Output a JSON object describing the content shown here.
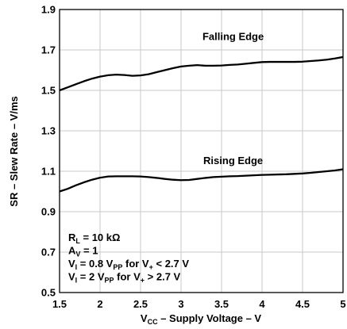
{
  "chart_data": {
    "type": "line",
    "xlabel": "V<sub>CC</sub> – Supply Voltage – V",
    "xlabel_parts": {
      "pre": "V",
      "sub": "CC",
      "post": " – Supply Voltage – V"
    },
    "ylabel": "SR – Slew Rate – V/ms",
    "xlim": [
      1.5,
      5
    ],
    "ylim": [
      0.5,
      1.9
    ],
    "xticks": [
      "1.5",
      "2",
      "2.5",
      "3",
      "3.5",
      "4",
      "4.5",
      "5"
    ],
    "yticks": [
      "0.5",
      "0.7",
      "0.9",
      "1.1",
      "1.3",
      "1.5",
      "1.7",
      "1.9"
    ],
    "grid": true,
    "series": [
      {
        "name": "Falling Edge",
        "x": [
          1.5,
          1.6,
          1.7,
          1.8,
          1.9,
          2.0,
          2.1,
          2.2,
          2.3,
          2.4,
          2.5,
          2.6,
          2.7,
          2.8,
          2.9,
          3.0,
          3.1,
          3.2,
          3.3,
          3.4,
          3.5,
          3.6,
          3.7,
          3.8,
          3.9,
          4.0,
          4.1,
          4.2,
          4.3,
          4.4,
          4.5,
          4.6,
          4.7,
          4.8,
          4.9,
          5.0
        ],
        "values": [
          1.5,
          1.515,
          1.53,
          1.545,
          1.558,
          1.568,
          1.575,
          1.578,
          1.576,
          1.572,
          1.574,
          1.58,
          1.59,
          1.6,
          1.61,
          1.618,
          1.622,
          1.625,
          1.622,
          1.622,
          1.623,
          1.626,
          1.628,
          1.632,
          1.636,
          1.64,
          1.641,
          1.641,
          1.641,
          1.641,
          1.642,
          1.645,
          1.648,
          1.652,
          1.658,
          1.665
        ]
      },
      {
        "name": "Rising Edge",
        "x": [
          1.5,
          1.6,
          1.7,
          1.8,
          1.9,
          2.0,
          2.1,
          2.2,
          2.3,
          2.4,
          2.5,
          2.6,
          2.7,
          2.8,
          2.9,
          3.0,
          3.1,
          3.2,
          3.3,
          3.4,
          3.5,
          3.6,
          3.7,
          3.8,
          3.9,
          4.0,
          4.1,
          4.2,
          4.3,
          4.4,
          4.5,
          4.6,
          4.7,
          4.8,
          4.9,
          5.0
        ],
        "values": [
          1.0,
          1.013,
          1.03,
          1.045,
          1.058,
          1.068,
          1.074,
          1.075,
          1.075,
          1.075,
          1.074,
          1.071,
          1.067,
          1.062,
          1.058,
          1.056,
          1.057,
          1.062,
          1.067,
          1.071,
          1.073,
          1.075,
          1.076,
          1.078,
          1.08,
          1.082,
          1.083,
          1.084,
          1.085,
          1.087,
          1.089,
          1.092,
          1.096,
          1.1,
          1.104,
          1.11
        ]
      }
    ],
    "series_label_pos": [
      {
        "x": 3.3,
        "y": 1.75
      },
      {
        "x": 3.3,
        "y": 1.135
      }
    ],
    "conditions": [
      {
        "pre": "R",
        "sub": "L",
        "post": " = 10 kΩ"
      },
      {
        "pre": "A",
        "sub": "V",
        "post": " = 1"
      },
      {
        "pre": "V",
        "sub": "I",
        "post": " = 0.8 V",
        "sub2": "PP",
        "post2": " for V",
        "sub3": "+",
        "post3": " < 2.7 V"
      },
      {
        "pre": "V",
        "sub": "I",
        "post": " = 2 V",
        "sub2": "PP",
        "post2": " for V",
        "sub3": "+",
        "post3": " > 2.7 V"
      }
    ]
  }
}
